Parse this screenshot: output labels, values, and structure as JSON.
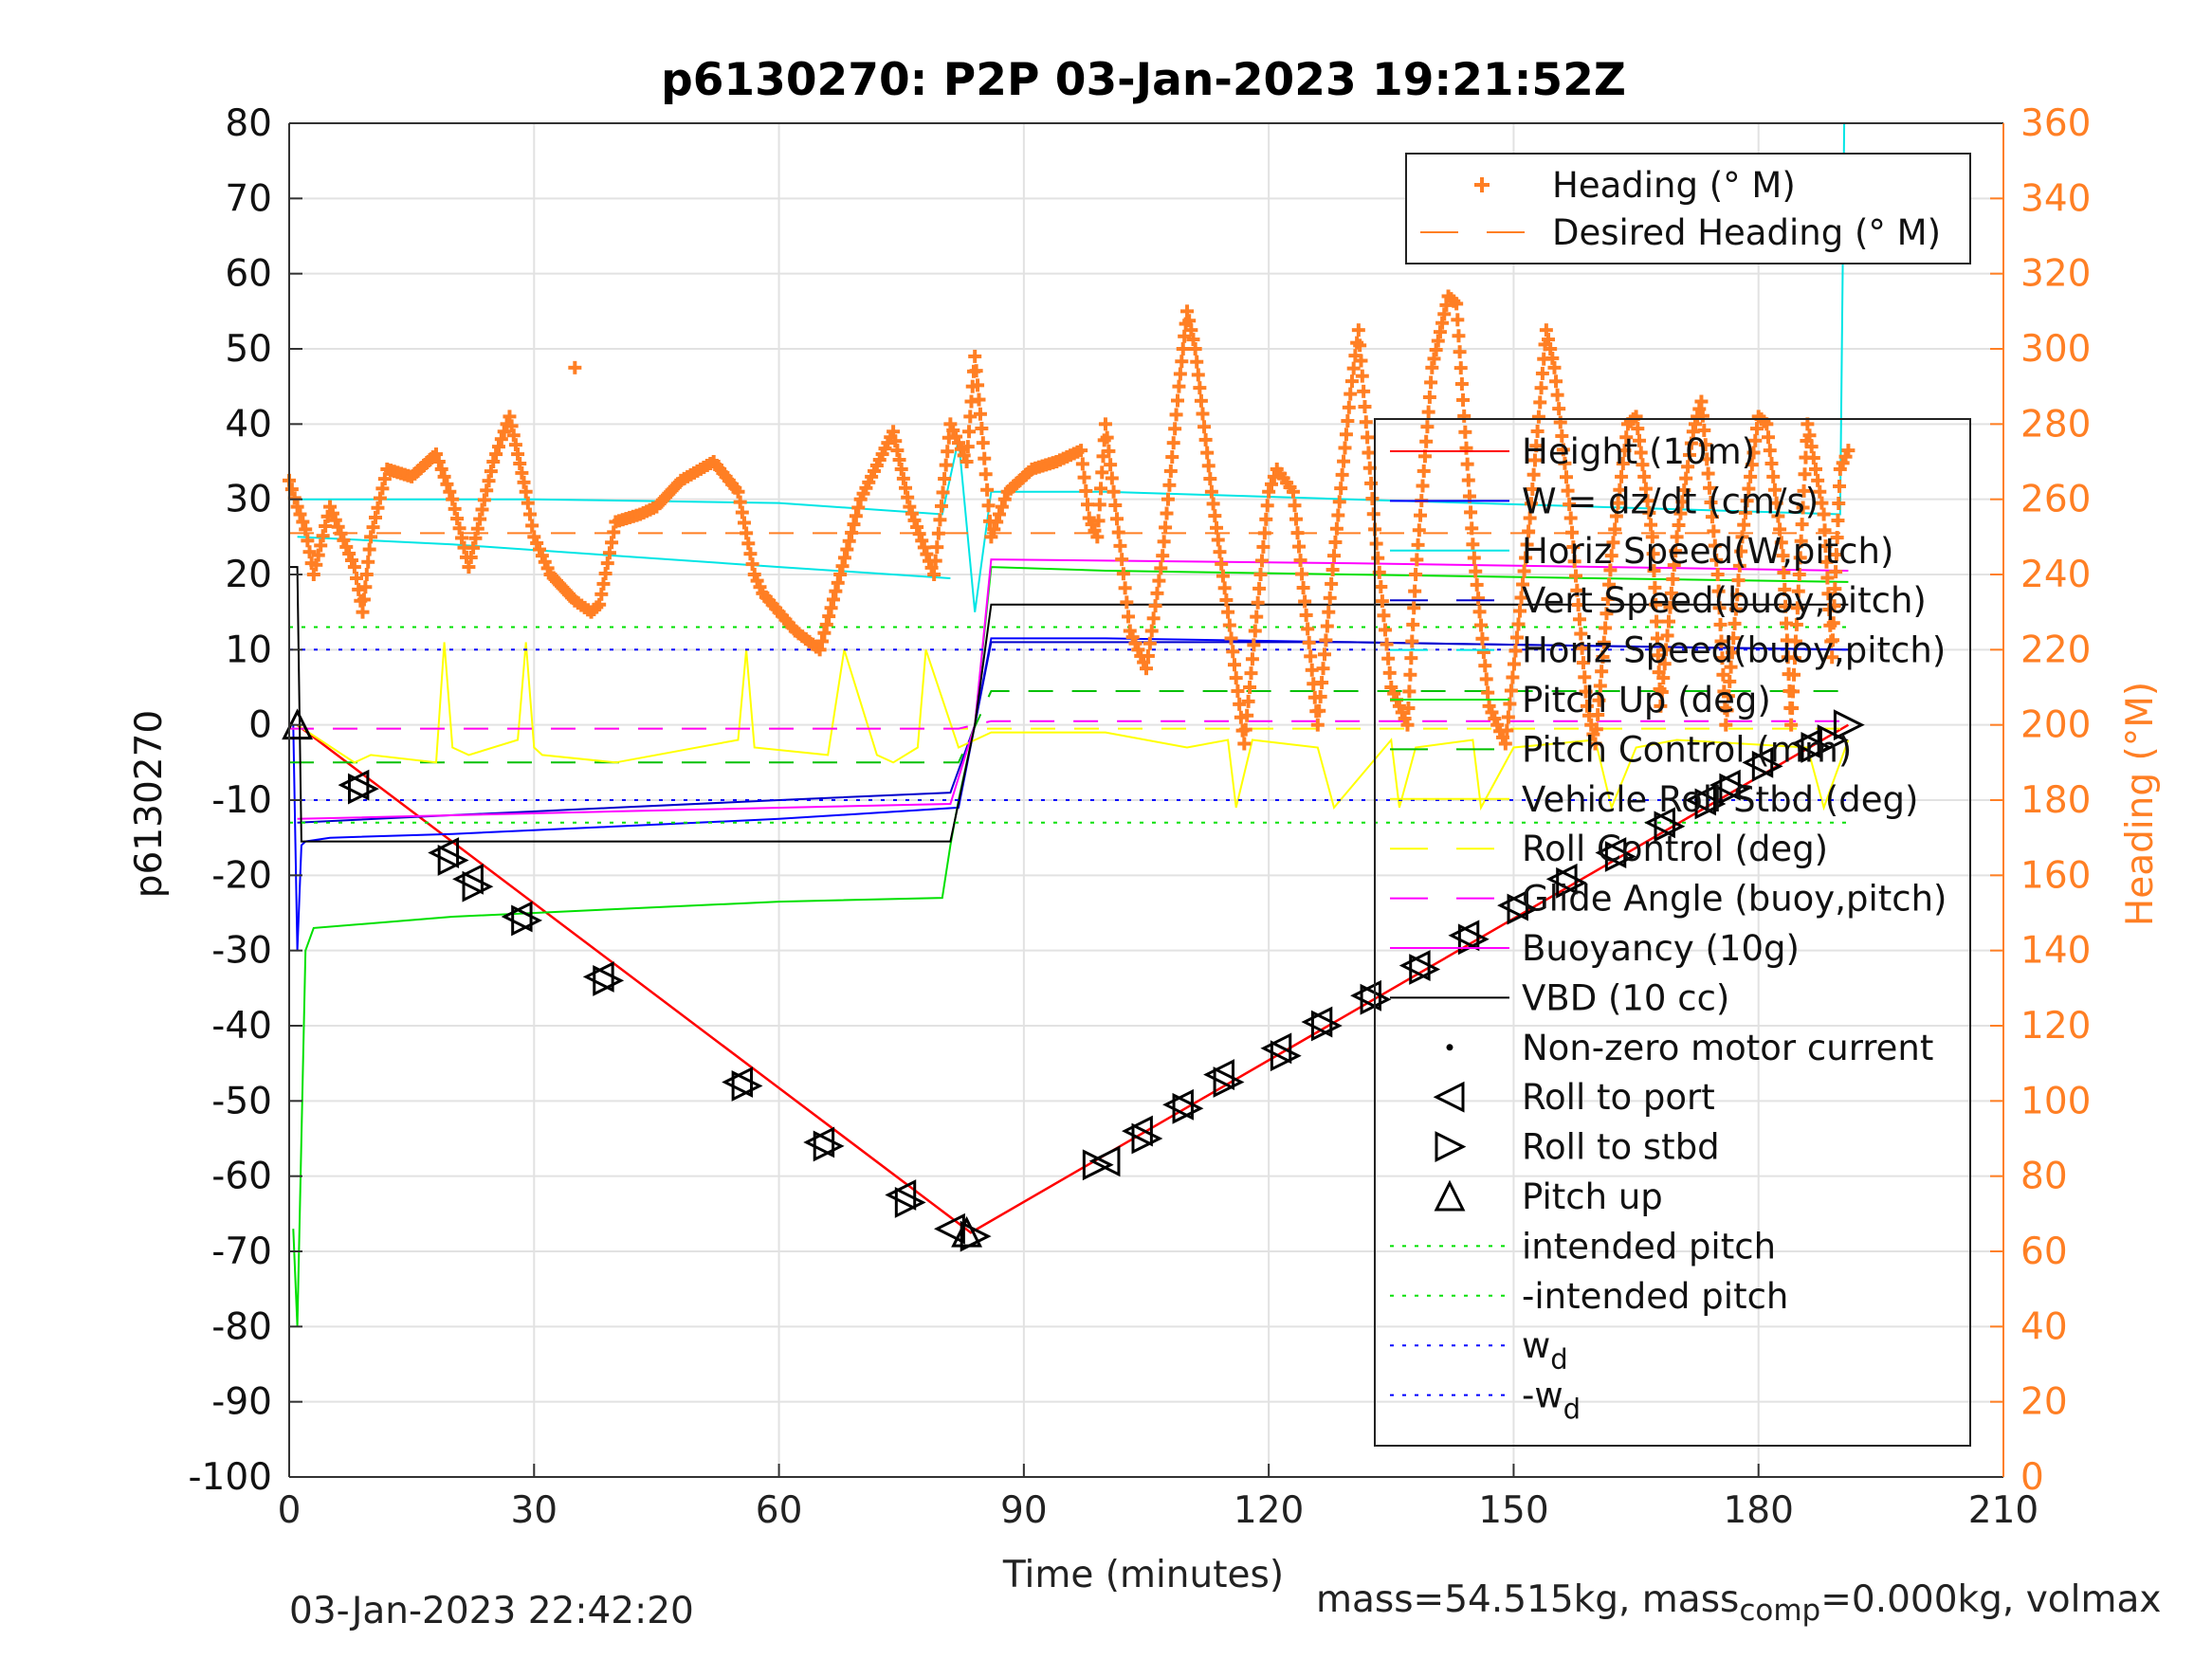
{
  "chart_data": {
    "type": "line",
    "title": "p6130270: P2P 03-Jan-2023 19:21:52Z",
    "xlabel": "Time (minutes)",
    "ylabel": "p6130270",
    "y2label": "Heading (°M)",
    "xlim": [
      0,
      210
    ],
    "ylim": [
      -100,
      80
    ],
    "y2lim": [
      0,
      360
    ],
    "xticks": [
      "0",
      "30",
      "60",
      "90",
      "120",
      "150",
      "180",
      "210"
    ],
    "yticks": [
      "80",
      "70",
      "60",
      "50",
      "40",
      "30",
      "20",
      "10",
      "0",
      "-10",
      "-20",
      "-30",
      "-40",
      "-50",
      "-60",
      "-70",
      "-80",
      "-90",
      "-100"
    ],
    "y2ticks": [
      "360",
      "340",
      "320",
      "300",
      "280",
      "260",
      "240",
      "220",
      "200",
      "180",
      "160",
      "140",
      "120",
      "100",
      "80",
      "60",
      "40",
      "20",
      "0"
    ],
    "grid": true,
    "legend_heading": [
      {
        "name": "Heading (° M)",
        "color": "#ff7f24",
        "style": "plus"
      },
      {
        "name": "Desired Heading (° M)",
        "color": "#ff7f24",
        "style": "dash"
      }
    ],
    "legend_main": [
      {
        "name": "Height (10m)",
        "color": "#ff0000",
        "style": "solid"
      },
      {
        "name": "W = dz/dt (cm/s)",
        "color": "#0000ff",
        "style": "solid"
      },
      {
        "name": "Horiz Speed(W,pitch)",
        "color": "#00e5e5",
        "style": "solid"
      },
      {
        "name": "Vert Speed(buoy,pitch)",
        "color": "#0000cc",
        "style": "dash"
      },
      {
        "name": "Horiz Speed(buoy,pitch)",
        "color": "#00e5e5",
        "style": "dash"
      },
      {
        "name": "Pitch Up (deg)",
        "color": "#00e000",
        "style": "solid"
      },
      {
        "name": "Pitch Control (mm)",
        "color": "#00c000",
        "style": "dash"
      },
      {
        "name": "Vehicle Roll Stbd (deg)",
        "color": "#ffff00",
        "style": "solid"
      },
      {
        "name": "Roll Control (deg)",
        "color": "#ffff00",
        "style": "dash"
      },
      {
        "name": "Glide Angle (buoy,pitch)",
        "color": "#ff00ff",
        "style": "dash"
      },
      {
        "name": "Buoyancy (10g)",
        "color": "#ff00ff",
        "style": "solid"
      },
      {
        "name": "VBD (10 cc)",
        "color": "#000000",
        "style": "solid"
      },
      {
        "name": "Non-zero motor current",
        "color": "#000000",
        "style": "dot"
      },
      {
        "name": "Roll to port",
        "color": "#000000",
        "style": "tri-left"
      },
      {
        "name": "Roll to stbd",
        "color": "#000000",
        "style": "tri-right"
      },
      {
        "name": "Pitch up",
        "color": "#000000",
        "style": "tri-up"
      },
      {
        "name": "intended pitch",
        "color": "#00e000",
        "style": "dotted"
      },
      {
        "name": "-intended pitch",
        "color": "#00e000",
        "style": "dotted"
      },
      {
        "name": "w",
        "sub": "d",
        "color": "#0000ff",
        "style": "dotted"
      },
      {
        "name": "-w",
        "sub": "d",
        "color": "#0000ff",
        "style": "dotted"
      }
    ],
    "series": [
      {
        "name": "Height (10m)",
        "color": "#ff0000",
        "x": [
          1,
          83.5,
          191
        ],
        "y": [
          0,
          -67.5,
          0
        ]
      },
      {
        "name": "W = dz/dt (cm/s)",
        "color": "#0000ff",
        "x": [
          0.5,
          1,
          1.5,
          2,
          5,
          20,
          40,
          60,
          82,
          84,
          86,
          100,
          130,
          160,
          190,
          191
        ],
        "y": [
          0,
          -30,
          -16,
          -15.5,
          -15,
          -14.5,
          -13.5,
          -12.5,
          -11,
          0,
          11.5,
          11.5,
          11,
          10.5,
          10,
          10
        ]
      },
      {
        "name": "Horiz Speed(W,pitch)",
        "color": "#00e5e5",
        "x": [
          0,
          2,
          30,
          60,
          80,
          82,
          84,
          86,
          100,
          130,
          160,
          190,
          190.5,
          191
        ],
        "y": [
          30,
          30,
          30,
          29.5,
          28,
          38,
          15,
          31,
          31,
          30,
          29,
          28,
          80,
          80
        ]
      },
      {
        "name": "Vert Speed(buoy,pitch)",
        "color": "#0000cc",
        "x": [
          1,
          20,
          40,
          60,
          81,
          84,
          86,
          130,
          160,
          191
        ],
        "y": [
          -13,
          -12,
          -11,
          -10,
          -9,
          0,
          11,
          11,
          10.5,
          10
        ]
      },
      {
        "name": "Horiz Speed(buoy,pitch)",
        "color": "#00e5e5",
        "x": [
          1,
          20,
          40,
          60,
          81
        ],
        "y": [
          25,
          24,
          22.5,
          21,
          19.5
        ]
      },
      {
        "name": "Pitch Up (deg)",
        "color": "#00e000",
        "x": [
          0.5,
          1,
          2,
          3,
          20,
          40,
          60,
          80,
          81,
          82,
          84,
          86,
          100,
          130,
          160,
          191
        ],
        "y": [
          -67,
          -80,
          -30,
          -27,
          -25.5,
          -24.5,
          -23.5,
          -23,
          -16,
          -10,
          0,
          21,
          20.5,
          20,
          19.5,
          19
        ]
      },
      {
        "name": "Pitch Control (mm)",
        "color": "#00c000",
        "style": "dash",
        "x": [
          0,
          82,
          86,
          191
        ],
        "y": [
          -5,
          -5,
          4.5,
          4.5
        ]
      },
      {
        "name": "Vehicle Roll Stbd (deg)",
        "color": "#ffff00",
        "x": [
          1,
          8,
          10,
          18,
          19,
          20,
          22,
          28,
          29,
          30,
          31,
          40,
          55,
          56,
          57,
          66,
          68,
          72,
          74,
          77,
          78,
          82,
          86,
          100,
          110,
          115,
          116,
          118,
          126,
          128,
          135,
          136,
          138,
          145,
          146,
          150,
          160,
          162,
          165,
          170,
          186,
          188,
          191
        ],
        "y": [
          0,
          -5,
          -4,
          -5,
          11,
          -3,
          -4,
          -2,
          11,
          -3,
          -4,
          -5,
          -2,
          10,
          -3,
          -4,
          10,
          -4,
          -5,
          -3,
          10,
          -3,
          -1,
          -1,
          -3,
          -2,
          -11,
          -2,
          -3,
          -11,
          -2,
          -11,
          -3,
          -2,
          -11,
          -3,
          -2,
          -11,
          -3,
          -2,
          -3,
          -11,
          -2
        ]
      },
      {
        "name": "Roll Control (deg)",
        "color": "#ffff00",
        "style": "dash",
        "x": [
          0,
          191
        ],
        "y": [
          -0.5,
          -0.5
        ]
      },
      {
        "name": "Glide Angle (buoy,pitch)",
        "color": "#ff00ff",
        "style": "dash",
        "x": [
          0,
          82,
          86,
          191
        ],
        "y": [
          -0.5,
          -0.5,
          0.5,
          0.5
        ]
      },
      {
        "name": "Buoyancy (10g)",
        "color": "#ff00ff",
        "x": [
          1,
          40,
          81,
          84,
          86,
          130,
          191
        ],
        "y": [
          -12.5,
          -11.5,
          -10.5,
          0,
          22,
          21.5,
          20.5
        ]
      },
      {
        "name": "VBD (10 cc)",
        "color": "#000000",
        "x": [
          0,
          1,
          1.5,
          81,
          84,
          86,
          191
        ],
        "y": [
          21,
          21,
          -15.5,
          -15.5,
          0,
          16,
          16
        ]
      },
      {
        "name": "Desired Heading (° M)",
        "color": "#ff7f24",
        "style": "dash",
        "axis": "y2",
        "x": [
          0,
          191
        ],
        "y": [
          251,
          251
        ]
      },
      {
        "name": "intended pitch",
        "color": "#00e000",
        "style": "dotted",
        "x": [
          0,
          191
        ],
        "y": [
          13,
          13
        ]
      },
      {
        "name": "-intended pitch",
        "color": "#00e000",
        "style": "dotted",
        "x": [
          0,
          191
        ],
        "y": [
          -13,
          -13
        ]
      },
      {
        "name": "w_d",
        "color": "#0000ff",
        "style": "dotted",
        "x": [
          0,
          191
        ],
        "y": [
          10,
          10
        ]
      },
      {
        "name": "-w_d",
        "color": "#0000ff",
        "style": "dotted",
        "x": [
          0,
          191
        ],
        "y": [
          -10,
          -10
        ]
      }
    ],
    "heading": {
      "name": "Heading (° M)",
      "color": "#ff7f24",
      "axis": "y2",
      "x": [
        0,
        1,
        2,
        3,
        5,
        8,
        9,
        10,
        12,
        15,
        18,
        20,
        22,
        25,
        27,
        29,
        30,
        32,
        35,
        37,
        38,
        40,
        43,
        45,
        48,
        52,
        55,
        57,
        58,
        60,
        62,
        65,
        70,
        74,
        76,
        79,
        81,
        83,
        84,
        85,
        86,
        88,
        91,
        94,
        97,
        98,
        99,
        100,
        102,
        103,
        105,
        107,
        109,
        110,
        111,
        113,
        115,
        117,
        119,
        120,
        121,
        123,
        126,
        128,
        130,
        131,
        133,
        135,
        137,
        138,
        140,
        142,
        143,
        145,
        147,
        149,
        152,
        154,
        155,
        157,
        159,
        160,
        162,
        164,
        165,
        167,
        168,
        170,
        172,
        173,
        175,
        176,
        178,
        180,
        181,
        183,
        184,
        186,
        188,
        189,
        190,
        191
      ],
      "y": [
        265,
        258,
        252,
        240,
        258,
        242,
        230,
        250,
        268,
        266,
        272,
        260,
        242,
        270,
        282,
        262,
        250,
        240,
        233,
        230,
        232,
        254,
        256,
        258,
        265,
        270,
        262,
        240,
        235,
        230,
        225,
        220,
        260,
        278,
        258,
        240,
        280,
        270,
        298,
        275,
        250,
        262,
        268,
        270,
        273,
        255,
        250,
        280,
        244,
        225,
        215,
        245,
        290,
        310,
        300,
        262,
        230,
        195,
        240,
        262,
        268,
        262,
        200,
        245,
        288,
        305,
        252,
        210,
        200,
        240,
        295,
        314,
        312,
        248,
        205,
        195,
        255,
        305,
        295,
        255,
        205,
        195,
        245,
        280,
        282,
        250,
        205,
        250,
        278,
        286,
        240,
        200,
        250,
        282,
        280,
        245,
        200,
        280,
        256,
        218,
        268,
        273
      ],
      "outlier": {
        "x": 35,
        "y": 295
      }
    },
    "markers": {
      "roll_to_port": [
        [
          8,
          -8
        ],
        [
          19,
          -17
        ],
        [
          22,
          -20.5
        ],
        [
          28,
          -25.5
        ],
        [
          38,
          -33.5
        ],
        [
          55,
          -47.5
        ],
        [
          65,
          -55.5
        ],
        [
          75,
          -62.5
        ],
        [
          81,
          -67
        ],
        [
          100,
          -58
        ],
        [
          104,
          -54
        ],
        [
          109,
          -50.5
        ],
        [
          114,
          -46.5
        ],
        [
          121,
          -43
        ],
        [
          126,
          -39.5
        ],
        [
          132,
          -36
        ],
        [
          138,
          -32
        ],
        [
          144,
          -28
        ],
        [
          150,
          -24
        ],
        [
          156,
          -20.5
        ],
        [
          162,
          -17
        ],
        [
          168,
          -13
        ],
        [
          173,
          -10
        ],
        [
          176,
          -8
        ],
        [
          180,
          -5
        ],
        [
          186,
          -2.5
        ]
      ],
      "roll_to_stbd": [
        [
          9,
          -8.5
        ],
        [
          20,
          -18
        ],
        [
          23,
          -21.5
        ],
        [
          29,
          -26
        ],
        [
          39,
          -34
        ],
        [
          56,
          -48
        ],
        [
          66,
          -56
        ],
        [
          76,
          -63.5
        ],
        [
          84,
          -68
        ],
        [
          99,
          -58.5
        ],
        [
          105,
          -55
        ],
        [
          110,
          -51
        ],
        [
          115,
          -47.5
        ],
        [
          122,
          -44
        ],
        [
          127,
          -40
        ],
        [
          133,
          -36.5
        ],
        [
          139,
          -32.5
        ],
        [
          145,
          -28.5
        ],
        [
          151,
          -24.5
        ],
        [
          157,
          -21
        ],
        [
          163,
          -17.5
        ],
        [
          169,
          -13.5
        ],
        [
          174,
          -10.5
        ],
        [
          177,
          -8.5
        ],
        [
          181,
          -5.5
        ],
        [
          187,
          -3
        ],
        [
          189,
          -2
        ],
        [
          191,
          0
        ]
      ],
      "pitch_up": [
        [
          1,
          0
        ],
        [
          83,
          -67.5
        ]
      ]
    }
  },
  "footer": {
    "left": "03-Jan-2023 22:42:20",
    "right_main": "mass=54.515kg, mass",
    "right_sub": "comp",
    "right_rest": "=0.000kg, volmax"
  }
}
